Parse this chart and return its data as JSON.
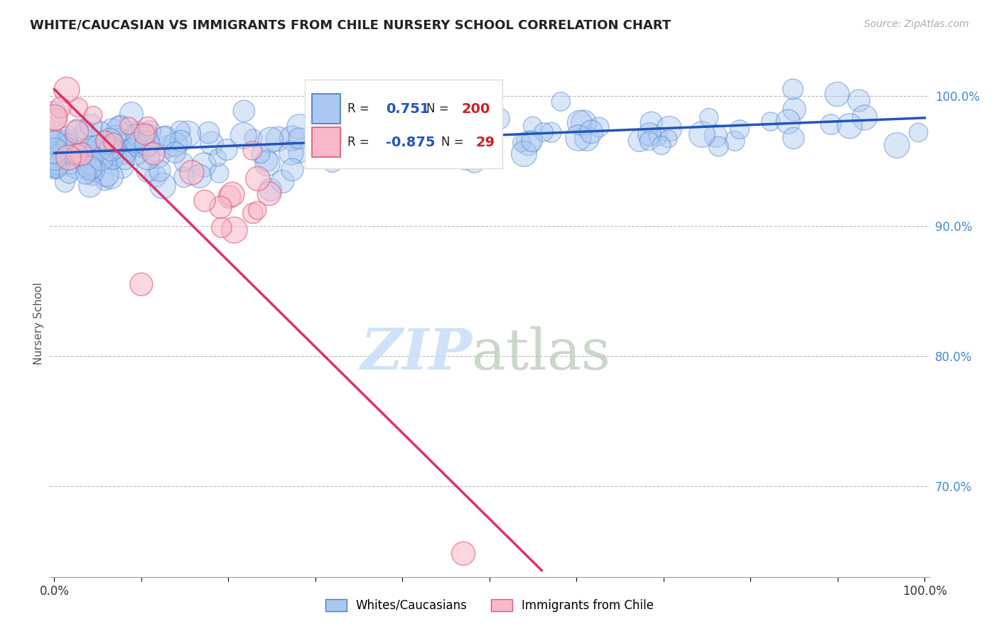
{
  "title": "WHITE/CAUCASIAN VS IMMIGRANTS FROM CHILE NURSERY SCHOOL CORRELATION CHART",
  "source": "Source: ZipAtlas.com",
  "ylabel": "Nursery School",
  "blue_R": 0.751,
  "blue_N": 200,
  "pink_R": -0.875,
  "pink_N": 29,
  "blue_color": "#aac8f0",
  "blue_edge_color": "#4477cc",
  "blue_line_color": "#2255bb",
  "pink_color": "#f8b8c8",
  "pink_edge_color": "#dd5577",
  "pink_line_color": "#dd3366",
  "watermark_zip_color": "#c8ddf8",
  "watermark_atlas_color": "#b8ccb8",
  "background_color": "#ffffff",
  "legend_label_blue": "Whites/Caucasians",
  "legend_label_pink": "Immigrants from Chile",
  "ymin": 0.63,
  "ymax": 1.02,
  "xmin": 0.0,
  "xmax": 1.0,
  "yticks": [
    0.7,
    0.8,
    0.9,
    1.0
  ],
  "ytick_labels": [
    "70.0%",
    "80.0%",
    "90.0%",
    "100.0%"
  ]
}
